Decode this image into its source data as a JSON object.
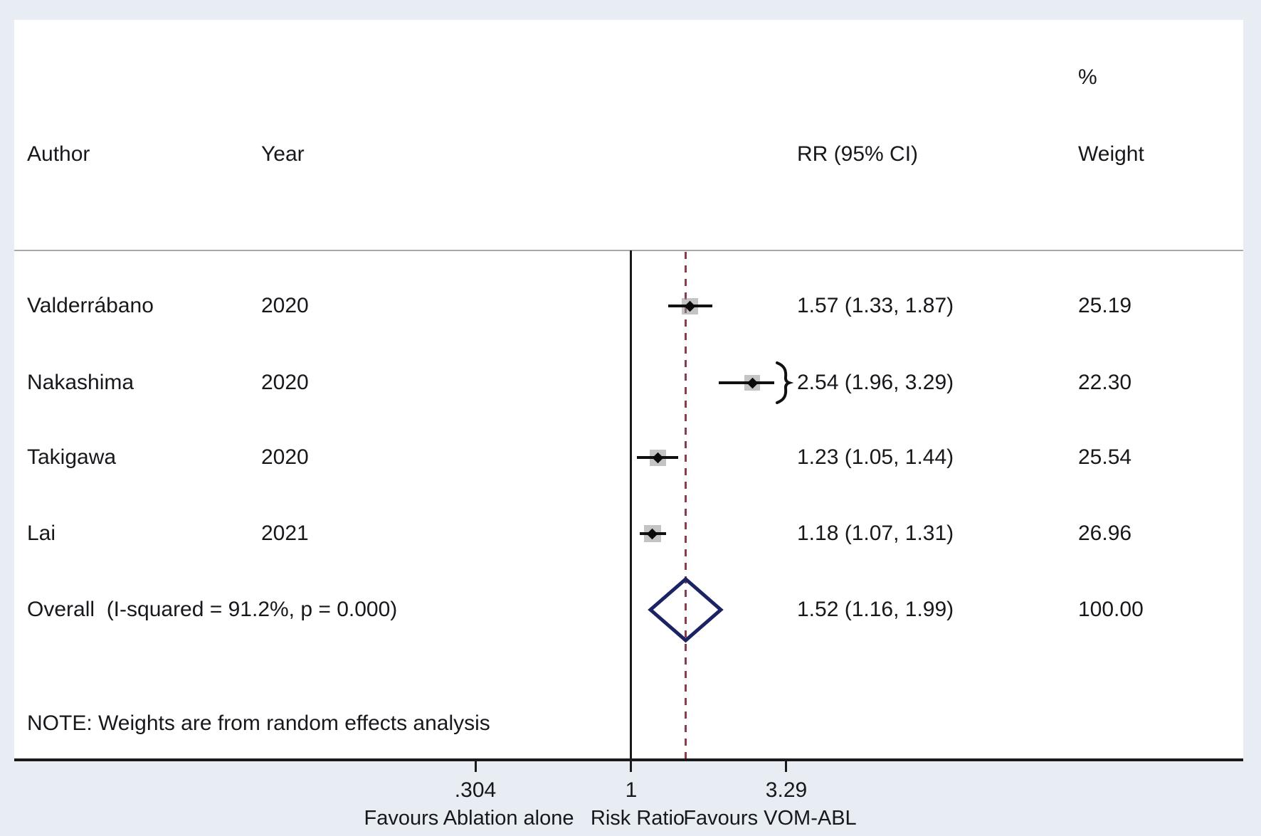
{
  "header": {
    "author": "Author",
    "year": "Year",
    "percent": "%",
    "rr_ci": "RR (95% CI)",
    "weight": "Weight"
  },
  "chart_data": {
    "type": "forest",
    "x_scale": "log",
    "x_ticks": [
      {
        "value": 0.304,
        "label": ".304"
      },
      {
        "value": 1,
        "label": "1"
      },
      {
        "value": 3.29,
        "label": "3.29"
      }
    ],
    "x_axis_captions": {
      "left": "Favours Ablation alone",
      "center": "Risk Ratio",
      "right": "Favours VOM-ABL"
    },
    "null_line_value": 1,
    "overall_line_value": 1.52,
    "studies": [
      {
        "author": "Valderrábano",
        "year": "2020",
        "rr": 1.57,
        "ci_low": 1.33,
        "ci_high": 1.87,
        "rr_text": "1.57 (1.33, 1.87)",
        "weight": 25.19,
        "weight_text": "25.19",
        "clipped_high": false
      },
      {
        "author": "Nakashima",
        "year": "2020",
        "rr": 2.54,
        "ci_low": 1.96,
        "ci_high": 3.29,
        "rr_text": "2.54 (1.96, 3.29)",
        "weight": 22.3,
        "weight_text": "22.30",
        "clipped_high": true
      },
      {
        "author": "Takigawa",
        "year": "2020",
        "rr": 1.23,
        "ci_low": 1.05,
        "ci_high": 1.44,
        "rr_text": "1.23 (1.05, 1.44)",
        "weight": 25.54,
        "weight_text": "25.54",
        "clipped_high": false
      },
      {
        "author": "Lai",
        "year": "2021",
        "rr": 1.18,
        "ci_low": 1.07,
        "ci_high": 1.31,
        "rr_text": "1.18 (1.07, 1.31)",
        "weight": 26.96,
        "weight_text": "26.96",
        "clipped_high": false
      }
    ],
    "overall": {
      "label": "Overall  (I-squared = 91.2%, p = 0.000)",
      "rr": 1.52,
      "ci_low": 1.16,
      "ci_high": 1.99,
      "rr_text": "1.52 (1.16, 1.99)",
      "weight_text": "100.00"
    },
    "note": "NOTE: Weights are from random effects analysis"
  },
  "colors": {
    "page_background": "#e7edf2",
    "plot_background": "#ffffff",
    "text": "#16181c",
    "axis_line": "#1a1a1a",
    "separator_line": "#a9a9a9",
    "ci_line": "#111111",
    "weight_box": "rgba(148,148,148,0.55)",
    "overall_dashed_line": "#8b3d4c",
    "overall_diamond": "#1b2364"
  }
}
